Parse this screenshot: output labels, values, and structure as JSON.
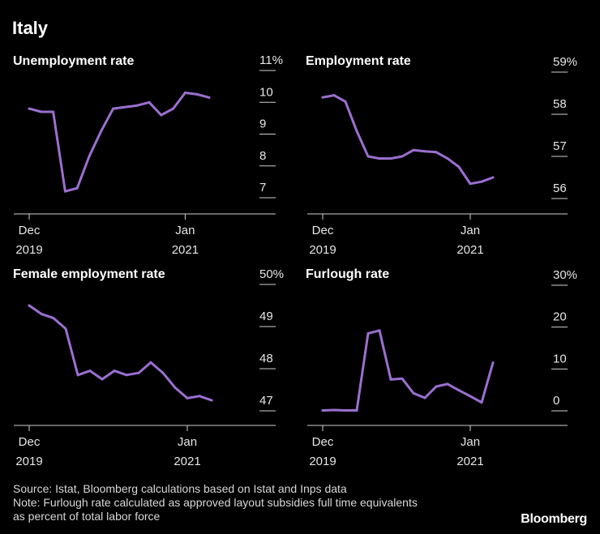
{
  "page_title": "Italy",
  "source": "Source: Istat, Bloomberg calculations based on Istat and Inps data",
  "note_line1": "Note: Furlough rate calculated as approved layout subsidies full time equivalents",
  "note_line2": "as percent of total labor force",
  "brand": "Bloomberg",
  "colors": {
    "line": "#9b6fd0",
    "axis": "#d0d0d0",
    "background": "#000000"
  },
  "chart_data": [
    {
      "type": "line",
      "title": "Unemployment rate",
      "x_ticks": [
        {
          "index": 0,
          "line1": "Dec",
          "line2": "2019"
        },
        {
          "index": 13,
          "line1": "Jan",
          "line2": "2021"
        }
      ],
      "y_ticks": [
        "11%",
        "10",
        "9",
        "8",
        "7"
      ],
      "y_tick_values": [
        11,
        10,
        9,
        8,
        7
      ],
      "ylim": [
        6.6,
        11.4
      ],
      "values": [
        9.8,
        9.7,
        9.7,
        7.2,
        7.3,
        8.3,
        9.1,
        9.8,
        9.85,
        9.9,
        10.0,
        9.6,
        9.8,
        10.3,
        10.25,
        10.15
      ]
    },
    {
      "type": "line",
      "title": "Employment rate",
      "x_ticks": [
        {
          "index": 0,
          "line1": "Dec",
          "line2": "2019"
        },
        {
          "index": 13,
          "line1": "Jan",
          "line2": "2021"
        }
      ],
      "y_ticks": [
        "59%",
        "58",
        "57",
        "56"
      ],
      "y_tick_values": [
        59,
        58,
        57,
        56
      ],
      "ylim": [
        55.7,
        59.4
      ],
      "values": [
        58.4,
        58.45,
        58.3,
        57.6,
        57.0,
        56.95,
        56.95,
        57.0,
        57.15,
        57.12,
        57.1,
        56.95,
        56.75,
        56.35,
        56.4,
        56.5
      ]
    },
    {
      "type": "line",
      "title": "Female employment rate",
      "x_ticks": [
        {
          "index": 0,
          "line1": "Dec",
          "line2": "2019"
        },
        {
          "index": 13,
          "line1": "Jan",
          "line2": "2021"
        }
      ],
      "y_ticks": [
        "50%",
        "49",
        "48",
        "47"
      ],
      "y_tick_values": [
        50,
        49,
        48,
        47
      ],
      "ylim": [
        46.7,
        50.4
      ],
      "values": [
        49.5,
        49.3,
        49.2,
        48.95,
        47.85,
        47.95,
        47.75,
        47.95,
        47.85,
        47.9,
        48.15,
        47.9,
        47.55,
        47.3,
        47.35,
        47.25
      ]
    },
    {
      "type": "line",
      "title": "Furlough rate",
      "x_ticks": [
        {
          "index": 0,
          "line1": "Dec",
          "line2": "2019"
        },
        {
          "index": 13,
          "line1": "Jan",
          "line2": "2021"
        }
      ],
      "y_ticks": [
        "30%",
        "20",
        "10",
        "0"
      ],
      "y_tick_values": [
        30,
        20,
        10,
        0
      ],
      "ylim": [
        -2.5,
        32
      ],
      "values": [
        0.1,
        0.2,
        0.1,
        0.1,
        18.5,
        19.2,
        7.5,
        7.7,
        4.2,
        3.1,
        5.8,
        6.4,
        4.9,
        3.5,
        2.0,
        11.5
      ]
    }
  ]
}
